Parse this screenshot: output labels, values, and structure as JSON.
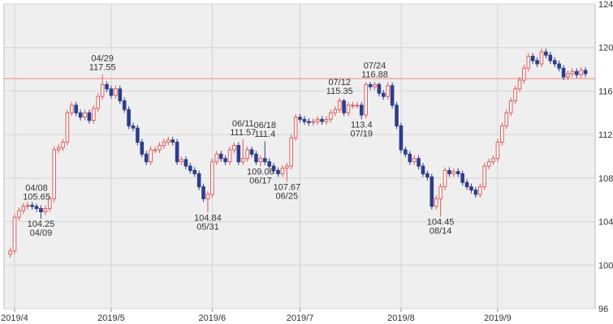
{
  "chart_data": {
    "type": "candlestick",
    "open": [
      101.0,
      101.3,
      104.4,
      105.0,
      105.4,
      105.5,
      105.4,
      105.2,
      104.9,
      105.2,
      106.1,
      110.6,
      110.8,
      111.3,
      114.0,
      114.7,
      114.0,
      113.6,
      114.0,
      113.3,
      114.4,
      115.5,
      116.6,
      116.2,
      115.6,
      116.2,
      115.1,
      114.3,
      112.8,
      112.6,
      111.3,
      110.2,
      109.5,
      110.6,
      110.6,
      111.0,
      111.3,
      111.5,
      111.3,
      109.5,
      109.7,
      109.1,
      108.7,
      108.4,
      107.2,
      106.1,
      106.5,
      109.5,
      110.2,
      109.8,
      109.5,
      110.6,
      111.0,
      109.5,
      109.8,
      110.6,
      110.2,
      109.5,
      109.8,
      109.5,
      109.1,
      108.7,
      108.4,
      108.9,
      109.1,
      111.7,
      113.6,
      113.4,
      113.2,
      113.1,
      113.2,
      113.4,
      113.2,
      113.4,
      114.0,
      114.3,
      115.1,
      114.0,
      114.7,
      114.7,
      114.7,
      113.8,
      116.6,
      116.4,
      116.6,
      115.8,
      115.5,
      116.5,
      114.7,
      112.8,
      110.6,
      110.2,
      109.5,
      109.8,
      109.1,
      108.4,
      108.1,
      105.4,
      106.1,
      107.2,
      108.7,
      108.4,
      108.6,
      108.4,
      107.6,
      107.2,
      106.9,
      106.5,
      107.2,
      109.1,
      109.5,
      109.8,
      111.3,
      112.8,
      114.0,
      115.1,
      116.2,
      117.0,
      118.1,
      119.2,
      118.8,
      118.5,
      119.6,
      119.3,
      118.8,
      118.5,
      118.1,
      117.3,
      117.6,
      117.8,
      117.5,
      117.9
    ],
    "high": [
      101.6,
      104.7,
      105.3,
      105.7,
      105.8,
      105.8,
      105.65,
      105.5,
      105.5,
      106.4,
      110.9,
      111.1,
      111.6,
      114.3,
      115.0,
      115.0,
      114.3,
      114.3,
      114.3,
      114.7,
      115.8,
      117.55,
      116.9,
      116.5,
      116.5,
      116.5,
      115.4,
      114.6,
      113.1,
      112.9,
      111.6,
      110.5,
      110.9,
      110.9,
      111.3,
      111.6,
      111.8,
      111.8,
      111.6,
      110.0,
      110.0,
      109.4,
      109.0,
      108.7,
      107.5,
      106.8,
      109.8,
      110.5,
      110.5,
      110.1,
      110.9,
      111.3,
      111.3,
      111.57,
      110.9,
      110.9,
      110.5,
      110.1,
      111.4,
      109.8,
      109.4,
      109.0,
      109.2,
      109.4,
      112.0,
      113.9,
      113.9,
      113.7,
      113.5,
      113.5,
      113.7,
      113.7,
      113.7,
      114.3,
      114.6,
      115.35,
      115.3,
      115.0,
      115.0,
      115.0,
      115.0,
      116.85,
      116.85,
      116.88,
      116.8,
      116.1,
      116.8,
      116.8,
      115.0,
      113.1,
      110.9,
      110.5,
      110.1,
      110.1,
      109.4,
      108.7,
      108.4,
      106.4,
      107.5,
      109.0,
      109.0,
      108.9,
      108.9,
      108.7,
      107.9,
      107.5,
      107.2,
      107.5,
      109.4,
      109.8,
      110.1,
      111.6,
      113.1,
      114.3,
      115.4,
      116.5,
      117.3,
      118.4,
      119.5,
      119.5,
      119.1,
      119.9,
      119.9,
      119.6,
      119.1,
      118.8,
      118.4,
      117.9,
      118.1,
      118.1,
      118.2,
      118.2
    ],
    "low": [
      100.7,
      101.0,
      104.1,
      104.7,
      105.1,
      105.1,
      104.9,
      104.25,
      104.6,
      104.9,
      105.8,
      110.3,
      110.5,
      111.0,
      113.7,
      113.7,
      113.3,
      113.3,
      113.0,
      113.0,
      114.1,
      115.2,
      115.9,
      115.3,
      115.3,
      114.8,
      114.0,
      112.5,
      112.3,
      111.0,
      109.9,
      109.2,
      109.2,
      110.3,
      110.3,
      110.7,
      111.0,
      111.0,
      109.2,
      109.2,
      108.8,
      108.4,
      108.1,
      106.9,
      105.8,
      104.84,
      106.2,
      109.2,
      109.5,
      109.2,
      109.2,
      110.3,
      109.2,
      109.2,
      109.5,
      109.9,
      109.2,
      109.06,
      109.2,
      108.8,
      108.4,
      108.1,
      108.1,
      107.67,
      108.8,
      111.4,
      113.1,
      112.9,
      112.8,
      112.8,
      112.9,
      112.9,
      112.9,
      113.1,
      113.7,
      114.0,
      113.7,
      113.7,
      114.4,
      114.4,
      113.4,
      113.5,
      116.1,
      116.1,
      115.5,
      115.2,
      115.2,
      114.4,
      112.5,
      110.3,
      109.9,
      109.2,
      109.2,
      108.8,
      108.1,
      107.8,
      105.1,
      105.1,
      104.45,
      106.9,
      108.1,
      108.1,
      108.1,
      107.3,
      106.9,
      106.6,
      106.2,
      106.2,
      106.9,
      108.8,
      109.2,
      109.5,
      111.0,
      112.5,
      113.7,
      114.8,
      115.9,
      116.7,
      117.8,
      118.5,
      118.2,
      118.2,
      119.0,
      118.5,
      118.2,
      117.8,
      117.0,
      117.0,
      117.3,
      117.2,
      117.2,
      117.3
    ],
    "close": [
      101.3,
      104.4,
      105.0,
      105.4,
      105.5,
      105.4,
      105.2,
      104.9,
      105.2,
      106.1,
      110.6,
      110.8,
      111.3,
      114.0,
      114.7,
      114.0,
      113.6,
      114.0,
      113.3,
      114.4,
      115.5,
      116.6,
      116.2,
      115.6,
      116.2,
      115.1,
      114.3,
      112.8,
      112.6,
      111.3,
      110.2,
      109.5,
      110.6,
      110.6,
      111.0,
      111.3,
      111.5,
      111.3,
      109.5,
      109.7,
      109.1,
      108.7,
      108.4,
      107.2,
      106.1,
      106.5,
      109.5,
      110.2,
      109.8,
      109.5,
      110.6,
      111.0,
      109.5,
      109.8,
      110.6,
      110.2,
      109.5,
      109.8,
      109.5,
      109.1,
      108.7,
      108.4,
      108.9,
      109.1,
      111.7,
      113.6,
      113.4,
      113.2,
      113.1,
      113.2,
      113.4,
      113.2,
      113.4,
      114.0,
      114.3,
      115.1,
      114.0,
      114.7,
      114.7,
      114.7,
      113.8,
      116.6,
      116.4,
      116.6,
      115.8,
      115.5,
      116.5,
      114.7,
      112.8,
      110.6,
      110.2,
      109.5,
      109.8,
      109.1,
      108.4,
      108.1,
      105.4,
      106.1,
      107.2,
      108.7,
      108.4,
      108.6,
      108.4,
      107.6,
      107.2,
      106.9,
      106.5,
      107.2,
      109.1,
      109.5,
      109.8,
      111.3,
      112.8,
      114.0,
      115.1,
      116.2,
      117.0,
      118.1,
      119.2,
      118.8,
      118.5,
      119.6,
      119.3,
      118.8,
      118.5,
      118.1,
      117.3,
      117.6,
      117.8,
      117.5,
      117.9,
      117.6
    ],
    "up_color": "#e05a5a",
    "down_color": "#2e3d8c",
    "xlim": [
      -1.4,
      133.2
    ],
    "xticks": [
      {
        "value": 1,
        "label": "2019/4"
      },
      {
        "value": 23,
        "label": "2019/5"
      },
      {
        "value": 46,
        "label": "2019/6"
      },
      {
        "value": 66,
        "label": "2019/7"
      },
      {
        "value": 89,
        "label": "2019/8"
      },
      {
        "value": 111,
        "label": "2019/9"
      }
    ],
    "ylim": [
      96,
      124
    ],
    "yticks": [
      96,
      100,
      104,
      108,
      112,
      116,
      120,
      124
    ],
    "grid": true,
    "reference_line": {
      "value": 117.15,
      "color": "#f08080"
    },
    "annotations": [
      {
        "x": 6,
        "date": "04/08",
        "value": 105.65,
        "position": "above"
      },
      {
        "x": 7,
        "date": "04/09",
        "value": 104.25,
        "position": "below"
      },
      {
        "x": 21,
        "date": "04/29",
        "value": 117.55,
        "position": "above"
      },
      {
        "x": 45,
        "date": "05/31",
        "value": 104.84,
        "position": "below"
      },
      {
        "x": 53,
        "date": "06/11",
        "value": 111.57,
        "position": "above"
      },
      {
        "x": 57,
        "date": "06/17",
        "value": 109.06,
        "position": "below"
      },
      {
        "x": 58,
        "date": "06/18",
        "value": 111.4,
        "position": "above"
      },
      {
        "x": 63,
        "date": "06/25",
        "value": 107.67,
        "position": "below"
      },
      {
        "x": 75,
        "date": "07/12",
        "value": 115.35,
        "position": "above"
      },
      {
        "x": 80,
        "date": "07/19",
        "value": 113.4,
        "position": "below"
      },
      {
        "x": 83,
        "date": "07/24",
        "value": 116.88,
        "position": "above"
      },
      {
        "x": 98,
        "date": "08/14",
        "value": 104.45,
        "position": "below"
      }
    ]
  }
}
